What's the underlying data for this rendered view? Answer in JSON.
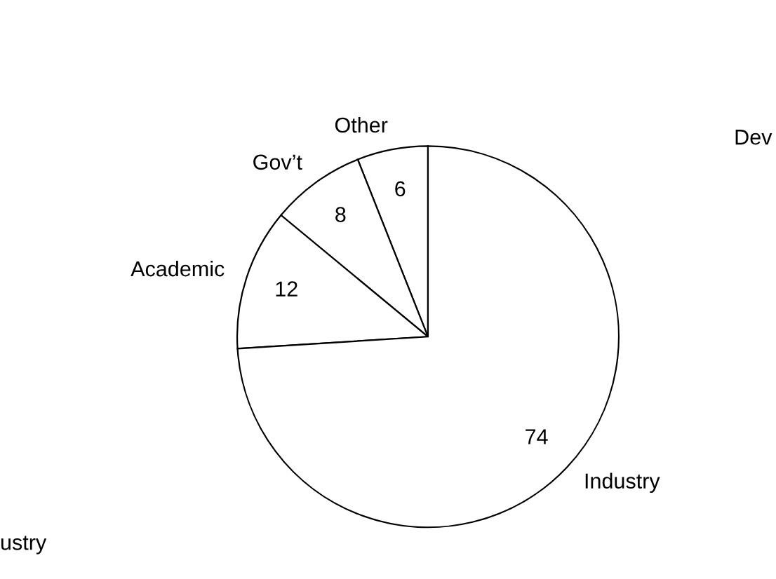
{
  "chart_data": {
    "type": "pie",
    "categories": [
      "Other",
      "Gov’t",
      "Academic",
      "Industry"
    ],
    "values": [
      6,
      8,
      12,
      74
    ],
    "colors": [
      "#ffffff",
      "#ffffff",
      "#ffffff",
      "#ffffff"
    ],
    "data_labels": true,
    "legend": false,
    "annotations": [
      "Dev",
      "ustry"
    ]
  }
}
